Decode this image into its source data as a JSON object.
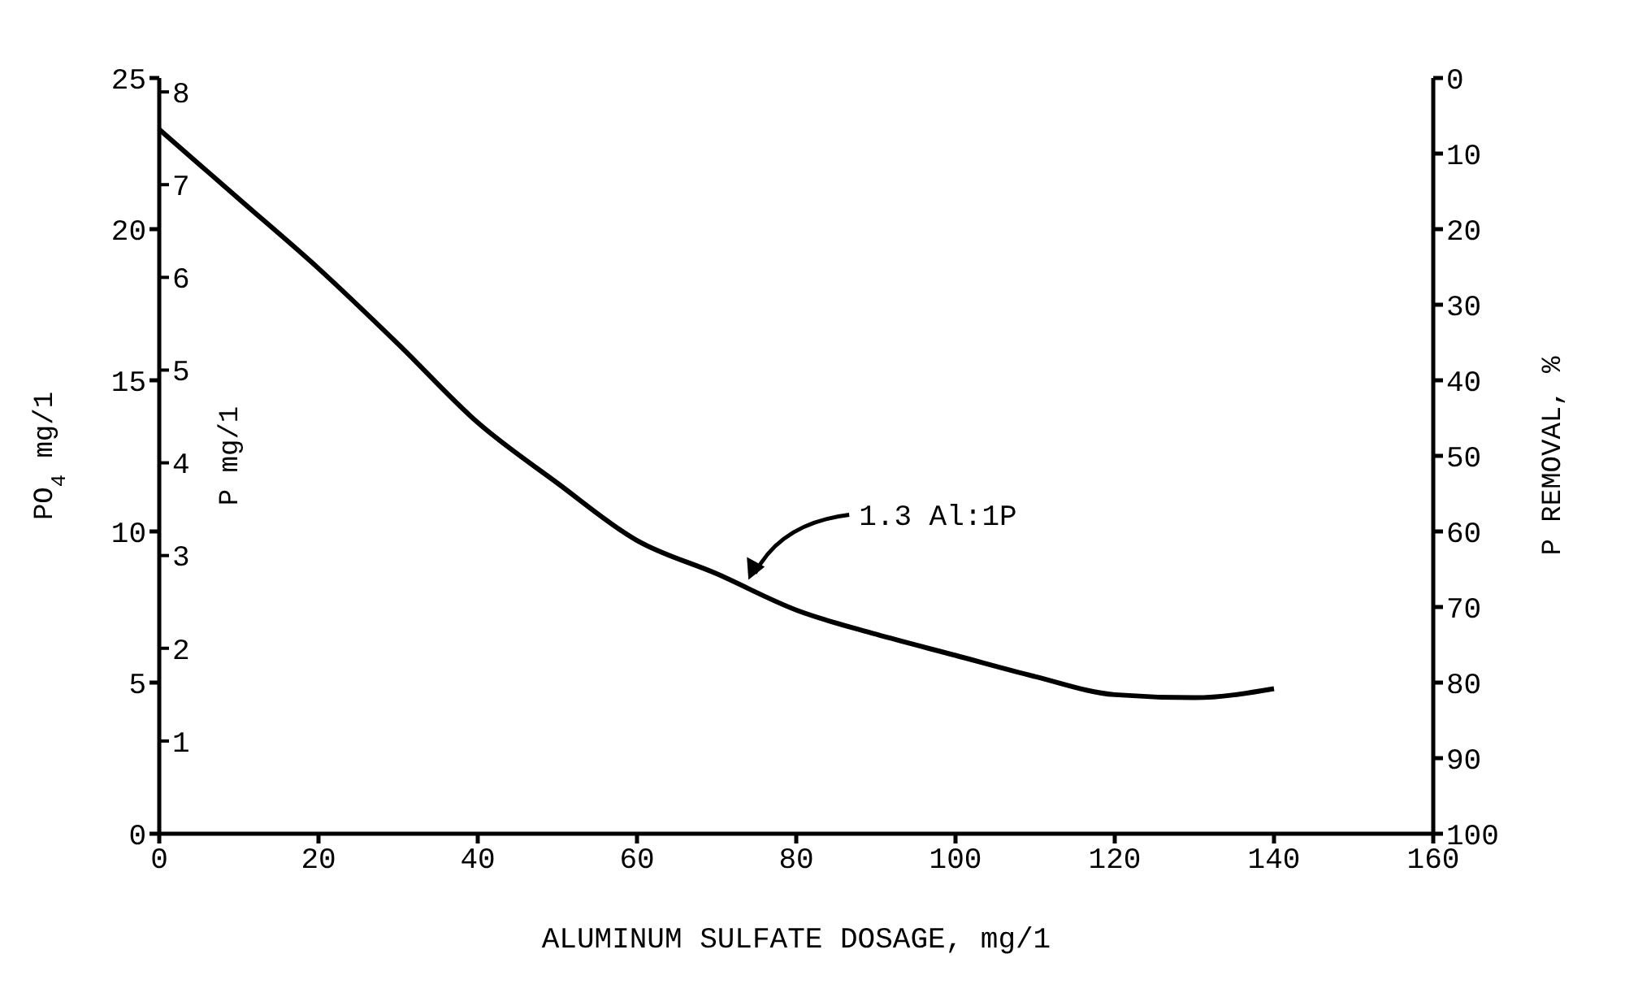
{
  "chart_data": {
    "type": "line",
    "xlabel": "ALUMINUM SULFATE DOSAGE, mg/1",
    "ylabel": "PO$_{4}$ mg/1",
    "y2label": "P mg/1",
    "y3label": "P REMOVAL, %",
    "x": [
      0,
      10,
      20,
      30,
      40,
      50,
      60,
      70,
      80,
      90,
      100,
      110,
      120,
      130,
      140
    ],
    "series": [
      {
        "color": "#000000",
        "values": [
          23.3,
          21,
          18.7,
          16.2,
          13.6,
          11.6,
          9.7,
          8.6,
          7.4,
          6.6,
          5.9,
          5.2,
          4.6,
          4.5,
          4.8
        ]
      }
    ],
    "xlim": [
      0,
      160
    ],
    "xticks": [
      0,
      20,
      40,
      60,
      80,
      100,
      120,
      140,
      160
    ],
    "ylim": [
      0,
      25
    ],
    "yticks": [
      0,
      5,
      10,
      15,
      20,
      25
    ],
    "y2lim": [
      0,
      8.15
    ],
    "y2ticks": [
      1,
      2,
      3,
      4,
      5,
      6,
      7,
      8
    ],
    "y3lim": [
      100,
      0
    ],
    "y3ticks": [
      0,
      10,
      20,
      30,
      40,
      50,
      60,
      70,
      80,
      90,
      100
    ],
    "annotations": [
      {
        "text": "1.3 Al:1P",
        "x": 74,
        "y": 8.4
      }
    ]
  }
}
